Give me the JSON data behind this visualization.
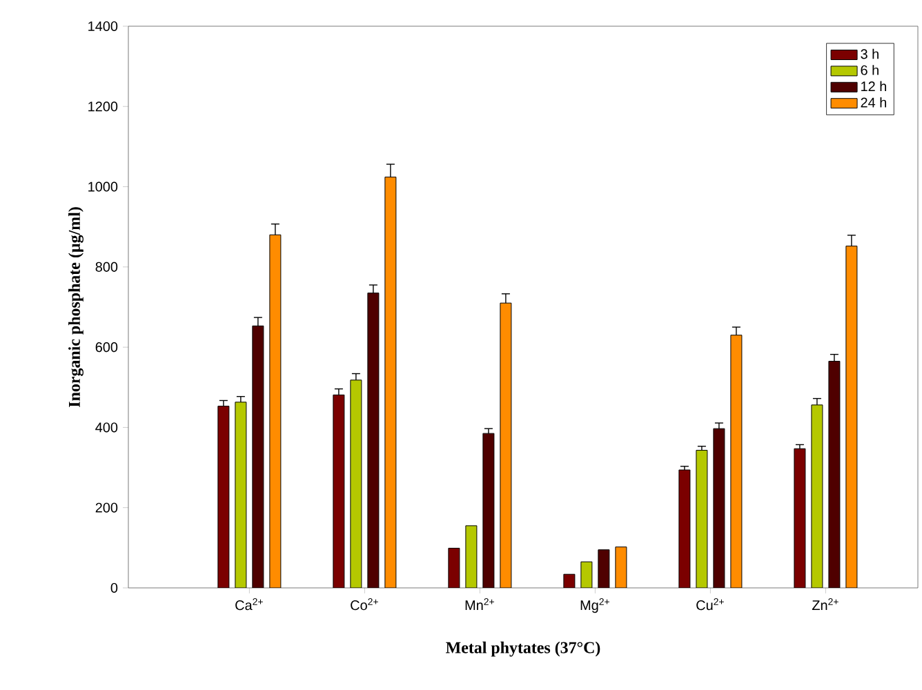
{
  "chart_data": {
    "type": "bar",
    "xlabel": "Metal phytates (37°C)",
    "ylabel": "Inorganic phosphate (µg/ml)",
    "categories": [
      "Ca$^{2+}$",
      "Co$^{2+}$",
      "Mn$^{2+}$",
      "Mg$^{2+}$",
      "Cu$^{2+}$",
      "Zn$^{2+}$"
    ],
    "series": [
      {
        "name": "3 h",
        "color": "#7b0000",
        "values": [
          453,
          481,
          99,
          34,
          294,
          347
        ],
        "errors": [
          [
            453,
            467
          ],
          [
            481,
            496
          ],
          null,
          null,
          [
            294,
            303
          ],
          [
            347,
            357
          ]
        ]
      },
      {
        "name": "6 h",
        "color": "#b5c800",
        "values": [
          463,
          518,
          155,
          65,
          343,
          456
        ],
        "errors": [
          [
            463,
            477
          ],
          [
            518,
            534
          ],
          null,
          null,
          [
            343,
            353
          ],
          [
            456,
            472
          ]
        ]
      },
      {
        "name": "12 h",
        "color": "#4f0000",
        "values": [
          653,
          735,
          385,
          95,
          397,
          565
        ],
        "errors": [
          [
            653,
            674
          ],
          [
            735,
            755
          ],
          [
            385,
            397
          ],
          null,
          [
            397,
            411
          ],
          [
            565,
            582
          ]
        ]
      },
      {
        "name": "24 h",
        "color": "#ff8c00",
        "values": [
          880,
          1024,
          710,
          102,
          630,
          852
        ],
        "errors": [
          [
            880,
            907
          ],
          [
            1024,
            1056
          ],
          [
            710,
            733
          ],
          null,
          [
            630,
            650
          ],
          [
            852,
            879
          ]
        ]
      }
    ],
    "ylim": [
      0,
      1400
    ],
    "yticks": [
      0,
      200,
      400,
      600,
      800,
      1000,
      1200,
      1400
    ],
    "legend": "top right"
  }
}
